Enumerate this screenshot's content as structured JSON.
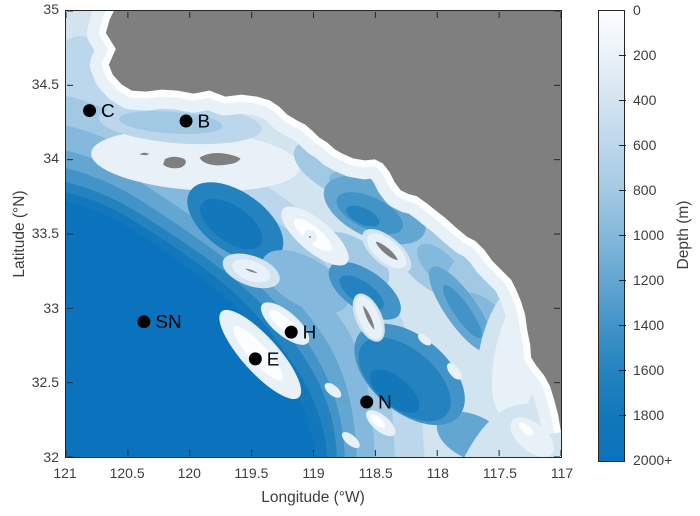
{
  "axes": {
    "x": {
      "label": "Longitude (°W)",
      "range": [
        121,
        117
      ],
      "ticks": [
        "121",
        "120.5",
        "120",
        "119.5",
        "119",
        "118.5",
        "118",
        "117.5",
        "117"
      ]
    },
    "y": {
      "label": "Latitude (°N)",
      "range": [
        32,
        35
      ],
      "ticks": [
        "35",
        "34.5",
        "34",
        "33.5",
        "33",
        "32.5",
        "32"
      ]
    }
  },
  "colorbar": {
    "label": "Depth (m)",
    "min": 0,
    "max": 2000,
    "ticks": [
      "0",
      "200",
      "400",
      "600",
      "800",
      "1000",
      "1200",
      "1400",
      "1600",
      "1800",
      "2000+"
    ]
  },
  "colormap": [
    {
      "depth": 0,
      "color": "#fcfdff"
    },
    {
      "depth": 200,
      "color": "#e9f1f8"
    },
    {
      "depth": 400,
      "color": "#d3e4f1"
    },
    {
      "depth": 600,
      "color": "#bcd7ec"
    },
    {
      "depth": 800,
      "color": "#a2c9e4"
    },
    {
      "depth": 1000,
      "color": "#84b8dc"
    },
    {
      "depth": 1200,
      "color": "#63a6d2"
    },
    {
      "depth": 1400,
      "color": "#4293c7"
    },
    {
      "depth": 1600,
      "color": "#2483bf"
    },
    {
      "depth": 1800,
      "color": "#1278bb"
    },
    {
      "depth": 2000,
      "color": "#0b72bd"
    }
  ],
  "land_color": "#7f7f7f",
  "axis_color": "#262626",
  "chart_data": {
    "type": "heatmap",
    "title": "",
    "xlabel": "Longitude (°W)",
    "ylabel": "Latitude (°N)",
    "xlim": [
      121,
      117
    ],
    "ylim": [
      32,
      35
    ],
    "grid": false,
    "colorbar_label": "Depth (m)",
    "depth_scale_m": [
      0,
      200,
      400,
      600,
      800,
      1000,
      1200,
      1400,
      1600,
      1800,
      2000
    ],
    "stations": [
      {
        "label": "C",
        "lon_w": 120.81,
        "lat_n": 34.33
      },
      {
        "label": "B",
        "lon_w": 120.03,
        "lat_n": 34.26
      },
      {
        "label": "SN",
        "lon_w": 120.37,
        "lat_n": 32.91
      },
      {
        "label": "H",
        "lon_w": 119.18,
        "lat_n": 32.84
      },
      {
        "label": "E",
        "lon_w": 119.47,
        "lat_n": 32.66
      },
      {
        "label": "N",
        "lon_w": 118.57,
        "lat_n": 32.37
      }
    ]
  }
}
